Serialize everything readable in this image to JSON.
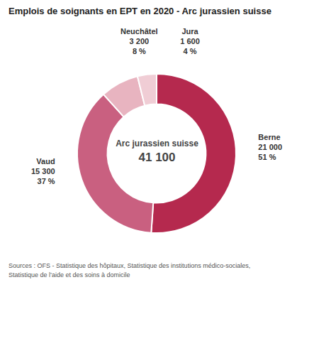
{
  "chart_data": {
    "type": "donut",
    "title": "Emplois de soignants en EPT en 2020 - Arc jurassien suisse",
    "center_text": [
      "Arc jurassien suisse",
      "41 100"
    ],
    "source": "Sources : OFS - Statistique des hôpitaux, Statistique des institutions médico-sociales,\nStatistique de l’aide et des soins à domicile",
    "categories": [
      "Berne",
      "Vaud",
      "Neuchâtel",
      "Jura"
    ],
    "values": [
      21000,
      15300,
      3200,
      1600
    ],
    "value_labels": [
      "21 000",
      "15 300",
      "3 200",
      "1 600"
    ],
    "shares": [
      51,
      37,
      8,
      4
    ],
    "share_labels": [
      "51 %",
      "37 %",
      "8 %",
      "4 %"
    ],
    "colors": [
      "#b5294e",
      "#c96080",
      "#e8b4c0",
      "#f0cdd5"
    ],
    "data_labels": true
  }
}
